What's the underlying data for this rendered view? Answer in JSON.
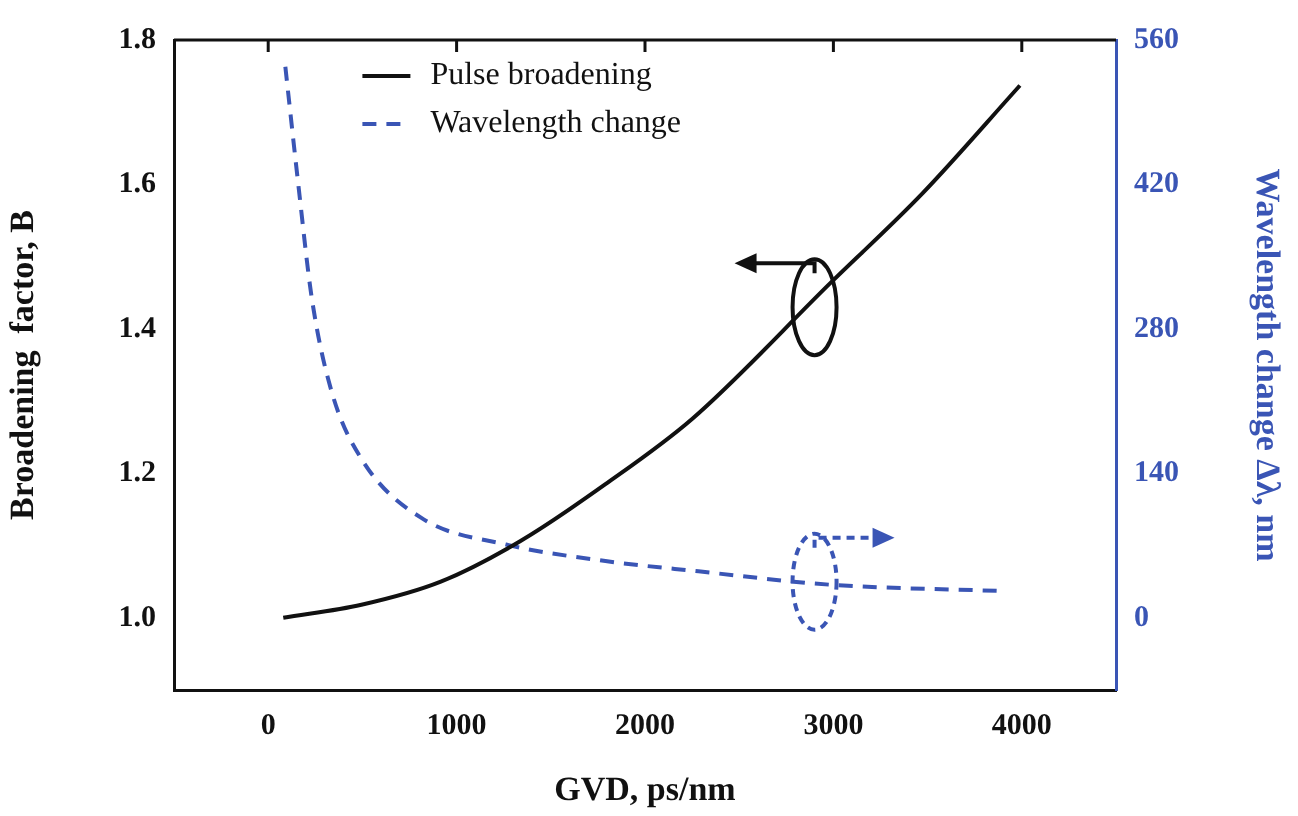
{
  "chart_data": {
    "type": "line",
    "xlabel": "GVD, ps/nm",
    "ylabel": "Broadening  factor, B",
    "y2label": "Wavelength change Δλ, nm",
    "xlim": [
      -500,
      4500
    ],
    "xticks": [
      0,
      1000,
      2000,
      3000,
      4000
    ],
    "ylim": [
      0.9,
      1.8
    ],
    "yticks": [
      {
        "value": 1.0,
        "label": "1.0"
      },
      {
        "value": 1.2,
        "label": "1.2"
      },
      {
        "value": 1.4,
        "label": "1.4"
      },
      {
        "value": 1.6,
        "label": "1.6"
      },
      {
        "value": 1.8,
        "label": "1.8"
      }
    ],
    "y2lim": [
      -70,
      560
    ],
    "y2ticks": [
      0,
      140,
      280,
      420,
      560
    ],
    "grid": false,
    "legend": "top",
    "marker": "none",
    "series": [
      {
        "name": "Pulse broadening",
        "color": "#111111",
        "line_style": "solid",
        "x": [
          80,
          495,
          916,
          1337,
          1790,
          2253,
          2986,
          3474,
          3990
        ],
        "values": [
          1.0,
          1.018,
          1.05,
          1.106,
          1.185,
          1.276,
          1.464,
          1.588,
          1.737
        ]
      },
      {
        "name": "Wavelength change",
        "color": "#3a55b5",
        "line_style": "dashed",
        "axis": "y2",
        "x": [
          91,
          161,
          232,
          337,
          495,
          811,
          1263,
          1790,
          2284,
          2986,
          3881
        ],
        "values": [
          534,
          418,
          309,
          219,
          154,
          97,
          71,
          55,
          45,
          32,
          26
        ]
      }
    ]
  }
}
